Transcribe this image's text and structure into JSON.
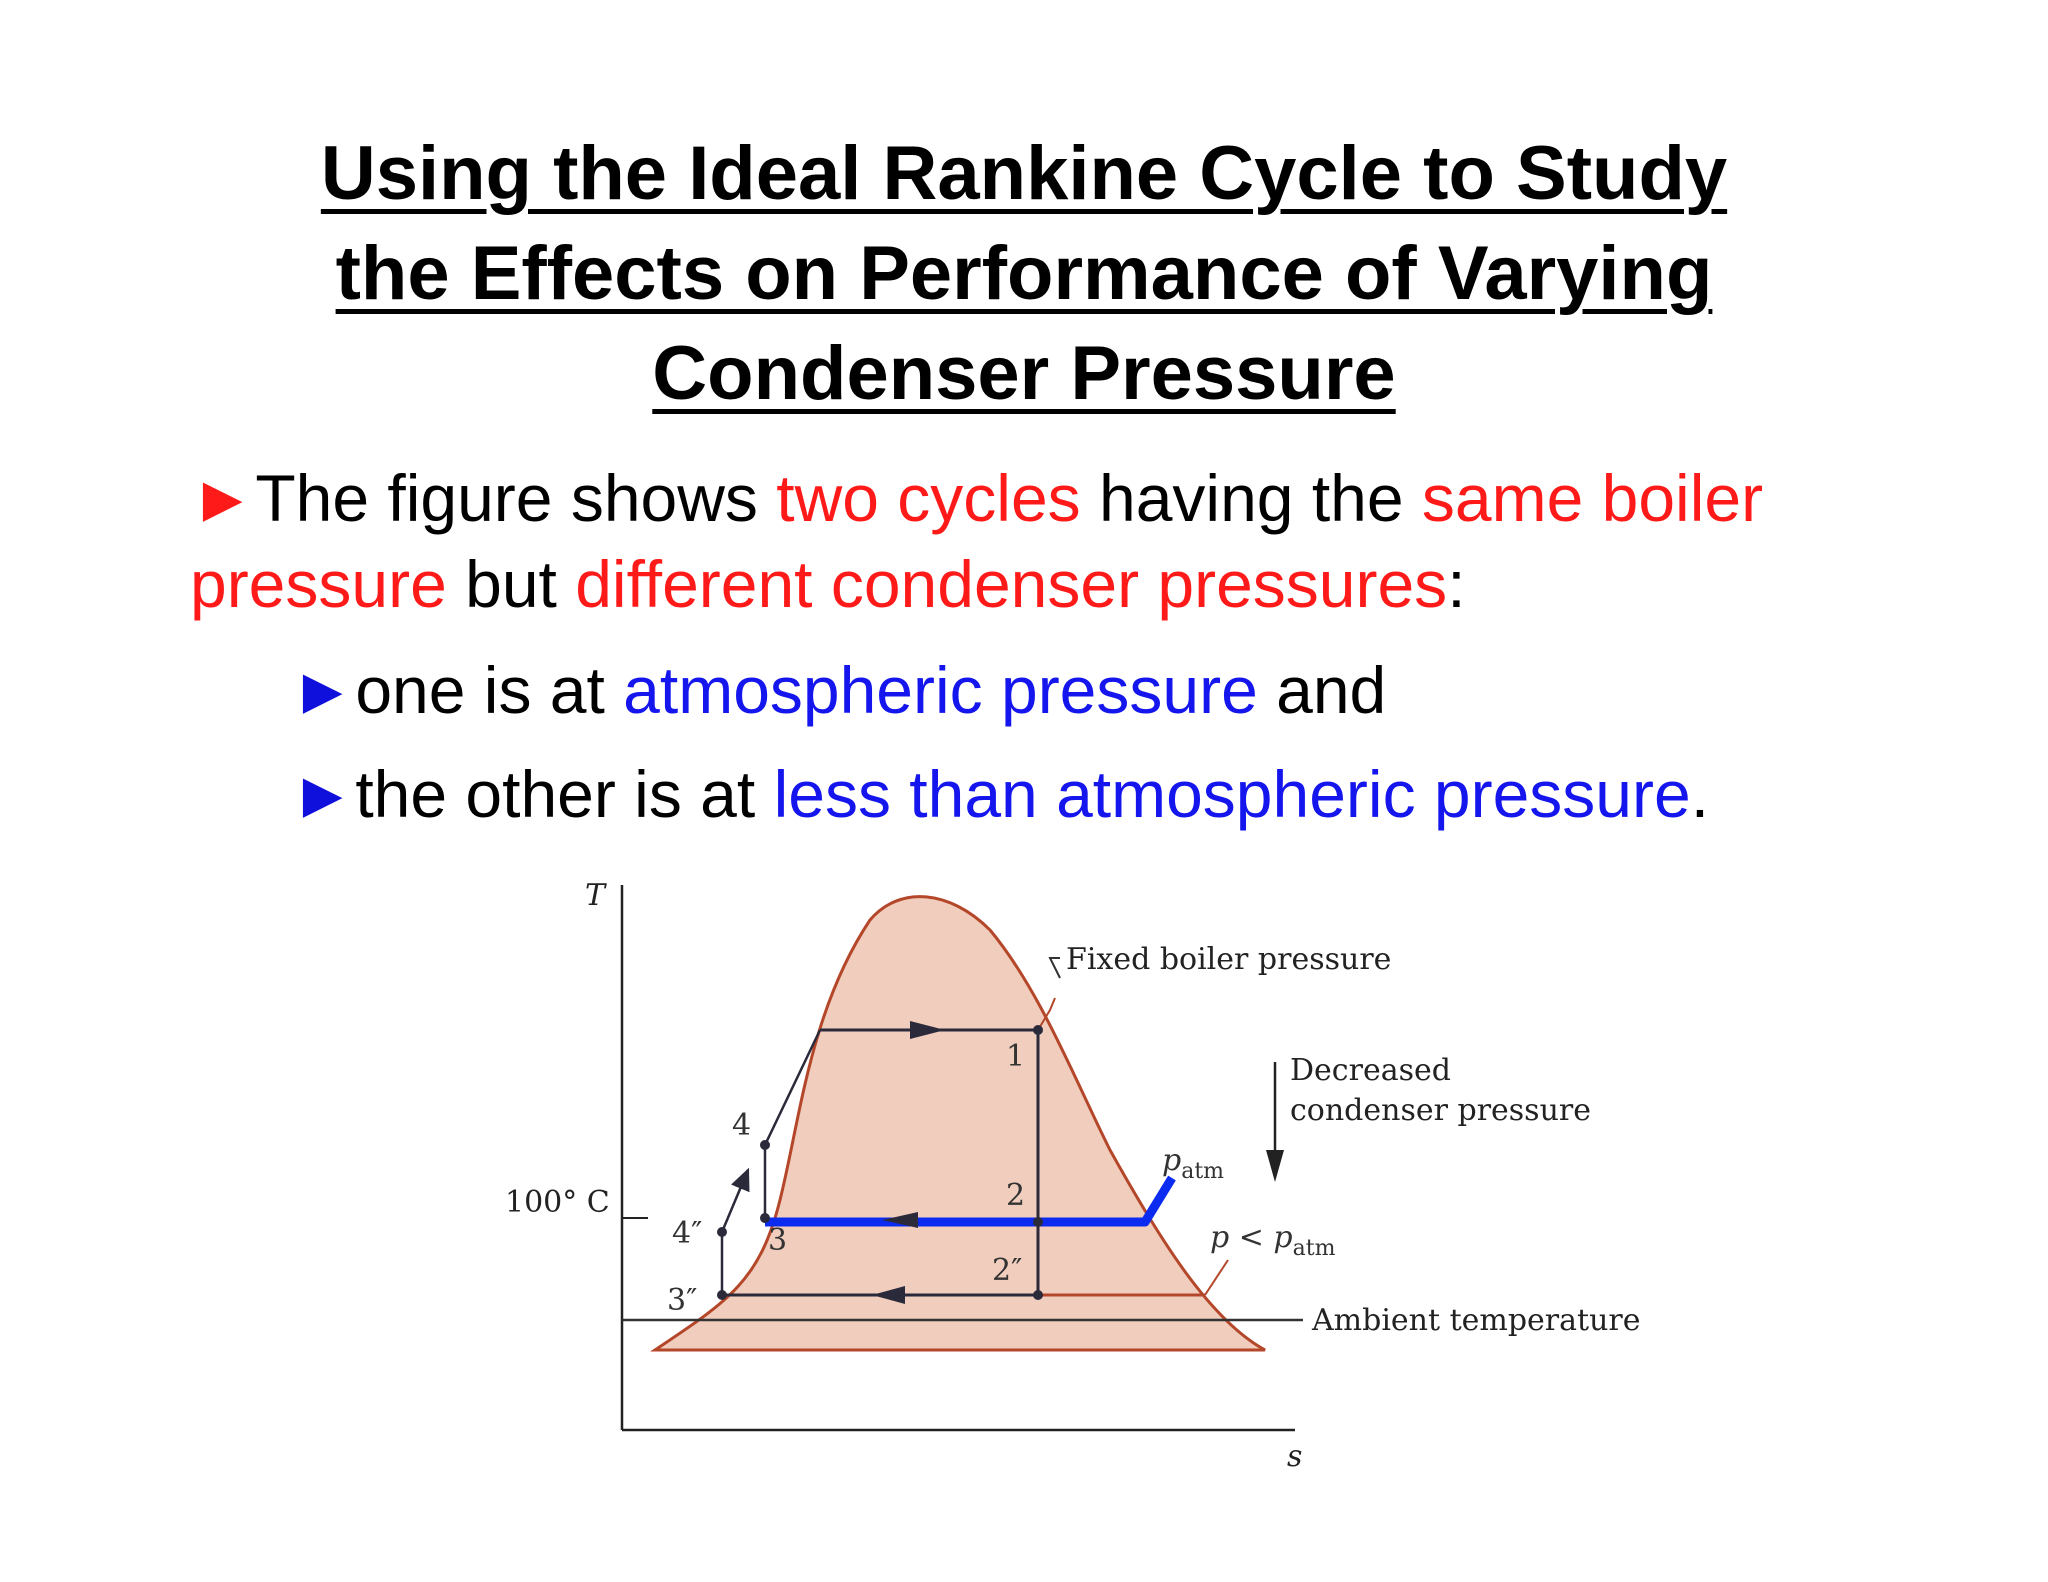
{
  "title": {
    "line1": "Using the Ideal Rankine Cycle to Study",
    "line2": "the Effects on Performance of Varying",
    "line3": "Condenser Pressure"
  },
  "bullet_main": {
    "marker": "►",
    "p1": "The figure shows ",
    "p2": "two cycles",
    "p3": " having the ",
    "p4": "same boiler pressure",
    "p5": " but ",
    "p6": "different condenser pressures",
    "p7": ":"
  },
  "bullet_sub1": {
    "marker": "►",
    "p1": "one is at ",
    "p2": "atmospheric pressure",
    "p3": " and"
  },
  "bullet_sub2": {
    "marker": "►",
    "p1": "the other is at ",
    "p2": "less than atmospheric pressure",
    "p3": "."
  },
  "figure": {
    "axis_y": "T",
    "axis_x": "s",
    "tick_100": "100° C",
    "fixed_boiler": "Fixed boiler pressure",
    "decreased_1": "Decreased",
    "decreased_2": "condenser pressure",
    "p_atm": "p",
    "p_atm_sub": "atm",
    "p_less": "p < p",
    "p_less_sub": "atm",
    "ambient": "Ambient temperature",
    "states": {
      "s1": "1",
      "s2": "2",
      "s2pp": "2″",
      "s3": "3",
      "s3pp": "3″",
      "s4": "4",
      "s4pp": "4″"
    },
    "colors": {
      "dome_fill": "#f1cdbd",
      "dome_line": "#b4472a",
      "cycle_line": "#2a2a3a",
      "highlight": "#0b2cf0"
    }
  }
}
